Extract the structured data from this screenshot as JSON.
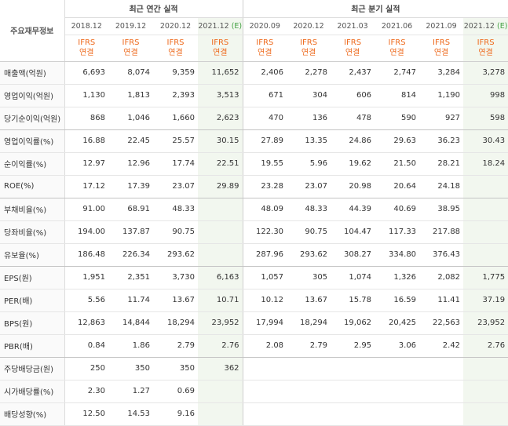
{
  "table": {
    "corner_label": "주요재무정보",
    "annual_group_label": "최근 연간 실적",
    "quarter_group_label": "최근 분기 실적",
    "annual_periods": [
      {
        "date": "2018.12",
        "est": ""
      },
      {
        "date": "2019.12",
        "est": ""
      },
      {
        "date": "2020.12",
        "est": ""
      },
      {
        "date": "2021.12",
        "est": "(E)"
      }
    ],
    "quarter_periods": [
      {
        "date": "2020.09",
        "est": ""
      },
      {
        "date": "2020.12",
        "est": ""
      },
      {
        "date": "2021.03",
        "est": ""
      },
      {
        "date": "2021.06",
        "est": ""
      },
      {
        "date": "2021.09",
        "est": ""
      },
      {
        "date": "2021.12",
        "est": "(E)"
      }
    ],
    "ifrs_line1": "IFRS",
    "ifrs_line2": "연결",
    "rows": [
      {
        "label": "매출액(억원)",
        "values": [
          "6,693",
          "8,074",
          "9,359",
          "11,652",
          "2,406",
          "2,278",
          "2,437",
          "2,747",
          "3,284",
          "3,278"
        ]
      },
      {
        "label": "영업이익(억원)",
        "values": [
          "1,130",
          "1,813",
          "2,393",
          "3,513",
          "671",
          "304",
          "606",
          "814",
          "1,190",
          "998"
        ]
      },
      {
        "label": "당기순이익(억원)",
        "values": [
          "868",
          "1,046",
          "1,660",
          "2,623",
          "470",
          "136",
          "478",
          "590",
          "927",
          "598"
        ]
      },
      {
        "label": "영업이익률(%)",
        "values": [
          "16.88",
          "22.45",
          "25.57",
          "30.15",
          "27.89",
          "13.35",
          "24.86",
          "29.63",
          "36.23",
          "30.43"
        ]
      },
      {
        "label": "순이익률(%)",
        "values": [
          "12.97",
          "12.96",
          "17.74",
          "22.51",
          "19.55",
          "5.96",
          "19.62",
          "21.50",
          "28.21",
          "18.24"
        ]
      },
      {
        "label": "ROE(%)",
        "values": [
          "17.12",
          "17.39",
          "23.07",
          "29.89",
          "23.28",
          "23.07",
          "20.98",
          "20.64",
          "24.18",
          ""
        ]
      },
      {
        "label": "부채비율(%)",
        "values": [
          "91.00",
          "68.91",
          "48.33",
          "",
          "48.09",
          "48.33",
          "44.39",
          "40.69",
          "38.95",
          ""
        ]
      },
      {
        "label": "당좌비율(%)",
        "values": [
          "194.00",
          "137.87",
          "90.75",
          "",
          "122.30",
          "90.75",
          "104.47",
          "117.33",
          "217.88",
          ""
        ]
      },
      {
        "label": "유보율(%)",
        "values": [
          "186.48",
          "226.34",
          "293.62",
          "",
          "287.96",
          "293.62",
          "308.27",
          "334.80",
          "376.43",
          ""
        ]
      },
      {
        "label": "EPS(원)",
        "values": [
          "1,951",
          "2,351",
          "3,730",
          "6,163",
          "1,057",
          "305",
          "1,074",
          "1,326",
          "2,082",
          "1,775"
        ]
      },
      {
        "label": "PER(배)",
        "values": [
          "5.56",
          "11.74",
          "13.67",
          "10.71",
          "10.12",
          "13.67",
          "15.78",
          "16.59",
          "11.41",
          "37.19"
        ]
      },
      {
        "label": "BPS(원)",
        "values": [
          "12,863",
          "14,844",
          "18,294",
          "23,952",
          "17,994",
          "18,294",
          "19,062",
          "20,425",
          "22,563",
          "23,952"
        ]
      },
      {
        "label": "PBR(배)",
        "values": [
          "0.84",
          "1.86",
          "2.79",
          "2.76",
          "2.08",
          "2.79",
          "2.95",
          "3.06",
          "2.42",
          "2.76"
        ]
      },
      {
        "label": "주당배당금(원)",
        "values": [
          "250",
          "350",
          "350",
          "362",
          "",
          "",
          "",
          "",
          "",
          ""
        ]
      },
      {
        "label": "시가배당률(%)",
        "values": [
          "2.30",
          "1.27",
          "0.69",
          "",
          "",
          "",
          "",
          "",
          "",
          ""
        ]
      },
      {
        "label": "배당성향(%)",
        "values": [
          "12.50",
          "14.53",
          "9.16",
          "",
          "",
          "",
          "",
          "",
          "",
          ""
        ]
      }
    ],
    "group_end_rows": [
      2,
      5,
      8,
      12
    ]
  },
  "colors": {
    "ifrs_text": "#ee6a1d",
    "estimate_marker": "#42a142",
    "estimate_column_bg": "#f2f7ef",
    "label_bg": "#fafafa"
  }
}
